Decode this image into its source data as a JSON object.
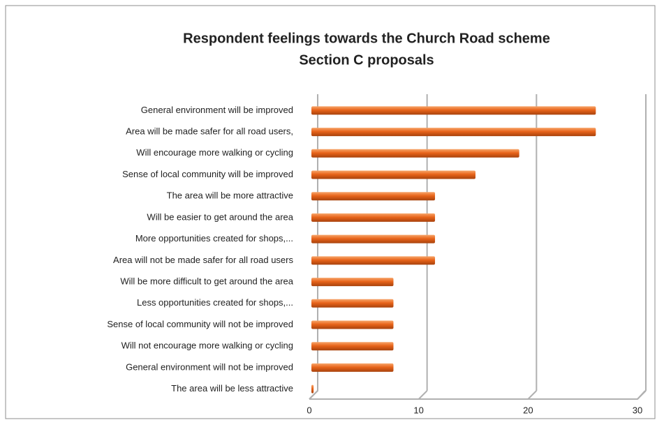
{
  "chart_data": {
    "type": "bar",
    "orientation": "horizontal",
    "title": [
      "Respondent feelings towards the Church Road scheme",
      "Section C proposals"
    ],
    "categories": [
      "General environment will be improved",
      "Area will be made safer for all road users,",
      "Will encourage more walking or cycling",
      "Sense of local community will be improved",
      "The area will be more attractive",
      "Will be easier to get around the area",
      "More opportunities created for shops,...",
      "Area will not be made safer for all road users",
      "Will be more difficult to get around the area",
      "Less opportunities created for shops,...",
      "Sense of local community will not be improved",
      "Will not encourage more walking or cycling",
      "General environment will not be improved",
      "The area will be less attractive"
    ],
    "values": [
      26,
      26,
      19,
      15,
      11.3,
      11.3,
      11.3,
      11.3,
      7.5,
      7.5,
      7.5,
      7.5,
      7.5,
      0.2
    ],
    "color": "#e8641a",
    "xlim": [
      0,
      30
    ],
    "xticks": [
      0,
      10,
      20,
      30
    ],
    "grid": true
  }
}
